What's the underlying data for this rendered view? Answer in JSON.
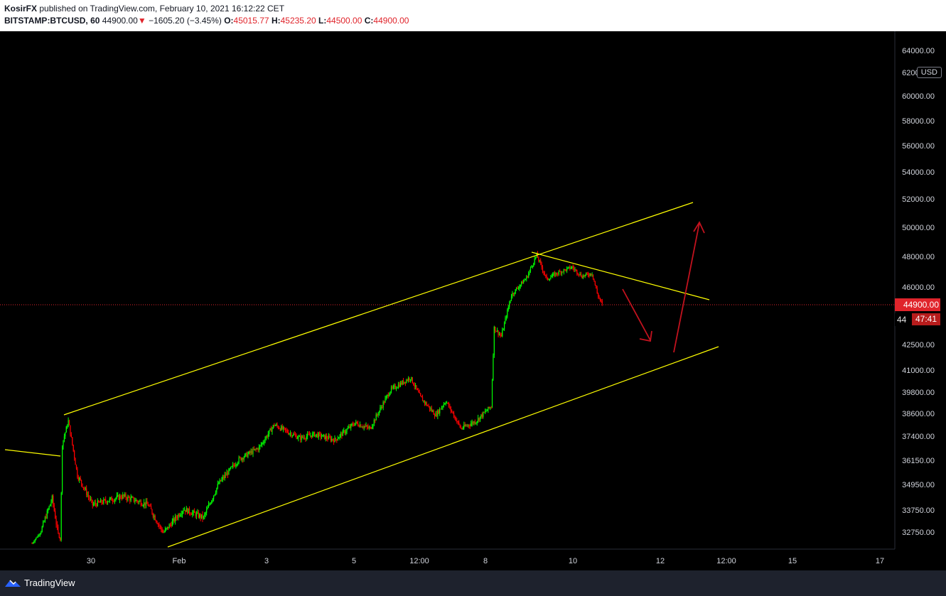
{
  "header": {
    "author": "KosirFX",
    "published_text": "published on TradingView.com, February 10, 2021 16:12:22 CET",
    "symbol": "BITSTAMP:BTCUSD, 60",
    "last_price": "44900.00",
    "change_arrow": "▼",
    "change": "−1605.20 (−3.45%)",
    "open_label": "O:",
    "open_value": "45015.77",
    "high_label": "H:",
    "high_value": "45235.20",
    "low_label": "L:",
    "low_value": "44500.00",
    "close_label": "C:",
    "close_value": "44900.00"
  },
  "footer": {
    "brand": "TradingView",
    "brand_icon": "tradingview-logo-icon"
  },
  "colors": {
    "background": "#000000",
    "up": "#00ff00",
    "down": "#ff0000",
    "trendline": "#ffff00",
    "arrow": "#c2121e",
    "price_line": "#e0242b"
  },
  "price_axis": {
    "currency": "USD",
    "current_price_label": "44900.00",
    "countdown": "47:41",
    "countdown_prefix": "44"
  },
  "chart_data": {
    "type": "candlestick",
    "symbol": "BITSTAMP:BTCUSD",
    "interval": "60",
    "x_ticks": [
      "30",
      "Feb",
      "3",
      "5",
      "12:00",
      "8",
      "10",
      "12",
      "12:00",
      "15",
      "17"
    ],
    "y_ticks": [
      {
        "value": 64000,
        "label": "64000.00"
      },
      {
        "value": 62000,
        "label": "62000.00"
      },
      {
        "value": 60000,
        "label": "60000.00"
      },
      {
        "value": 58000,
        "label": "58000.00"
      },
      {
        "value": 56000,
        "label": "56000.00"
      },
      {
        "value": 54000,
        "label": "54000.00"
      },
      {
        "value": 52000,
        "label": "52000.00"
      },
      {
        "value": 50000,
        "label": "50000.00"
      },
      {
        "value": 48000,
        "label": "48000.00"
      },
      {
        "value": 46000,
        "label": "46000.00"
      },
      {
        "value": 42500,
        "label": "42500.00"
      },
      {
        "value": 41000,
        "label": "41000.00"
      },
      {
        "value": 39800,
        "label": "39800.00"
      },
      {
        "value": 38600,
        "label": "38600.00"
      },
      {
        "value": 37400,
        "label": "37400.00"
      },
      {
        "value": 36150,
        "label": "36150.00"
      },
      {
        "value": 34950,
        "label": "34950.00"
      },
      {
        "value": 33750,
        "label": "33750.00"
      },
      {
        "value": 32750,
        "label": "32750.00"
      }
    ],
    "price_anchors": [
      {
        "t": 0,
        "p": 31600
      },
      {
        "t": 20,
        "p": 34300
      },
      {
        "t": 28,
        "p": 32000
      },
      {
        "t": 30,
        "p": 37000
      },
      {
        "t": 36,
        "p": 38200
      },
      {
        "t": 45,
        "p": 35400
      },
      {
        "t": 60,
        "p": 34000
      },
      {
        "t": 90,
        "p": 34400
      },
      {
        "t": 115,
        "p": 34000
      },
      {
        "t": 130,
        "p": 32700
      },
      {
        "t": 150,
        "p": 33800
      },
      {
        "t": 170,
        "p": 33400
      },
      {
        "t": 185,
        "p": 35000
      },
      {
        "t": 205,
        "p": 36200
      },
      {
        "t": 225,
        "p": 36800
      },
      {
        "t": 240,
        "p": 38000
      },
      {
        "t": 265,
        "p": 37300
      },
      {
        "t": 280,
        "p": 37500
      },
      {
        "t": 300,
        "p": 37200
      },
      {
        "t": 320,
        "p": 38100
      },
      {
        "t": 335,
        "p": 37800
      },
      {
        "t": 355,
        "p": 39900
      },
      {
        "t": 375,
        "p": 40600
      },
      {
        "t": 385,
        "p": 39500
      },
      {
        "t": 400,
        "p": 38500
      },
      {
        "t": 410,
        "p": 39300
      },
      {
        "t": 425,
        "p": 37800
      },
      {
        "t": 440,
        "p": 38200
      },
      {
        "t": 455,
        "p": 39000
      },
      {
        "t": 458,
        "p": 43500
      },
      {
        "t": 465,
        "p": 43000
      },
      {
        "t": 475,
        "p": 45500
      },
      {
        "t": 490,
        "p": 46600
      },
      {
        "t": 500,
        "p": 48100
      },
      {
        "t": 510,
        "p": 46500
      },
      {
        "t": 520,
        "p": 46900
      },
      {
        "t": 535,
        "p": 47300
      },
      {
        "t": 545,
        "p": 46700
      },
      {
        "t": 555,
        "p": 46900
      },
      {
        "t": 560,
        "p": 45600
      },
      {
        "t": 565,
        "p": 44900
      }
    ],
    "price_scale": "non-linear (approximated from tick labels)",
    "annotations": [
      "upper channel trendline",
      "lower channel trendline",
      "descending trendline from peak",
      "short pre-channel trendline",
      "down arrow (projected dip)",
      "up arrow (projected breakout)"
    ],
    "last_price": 44900
  }
}
